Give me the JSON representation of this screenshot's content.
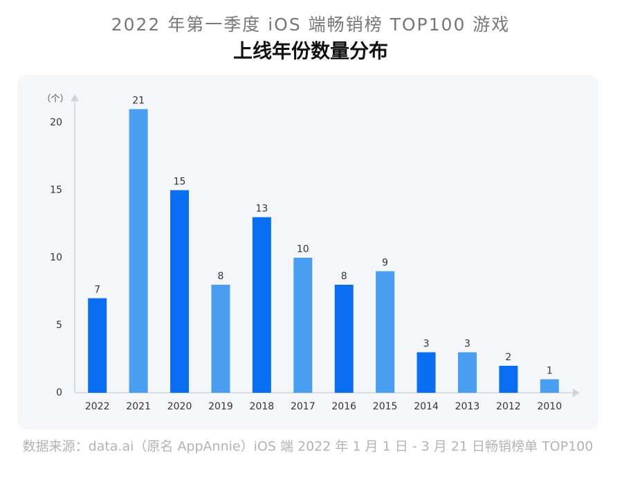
{
  "chart_data": {
    "type": "bar",
    "title": "2022 年第一季度 iOS 端畅销榜 TOP100 游戏",
    "subtitle": "上线年份数量分布",
    "y_label": "（个）",
    "source": "数据来源：data.ai（原名 AppAnnie）iOS 端 2022 年 1 月 1 日 - 3 月 21 日畅销榜单 TOP100",
    "categories": [
      "2022",
      "2021",
      "2020",
      "2019",
      "2018",
      "2017",
      "2016",
      "2015",
      "2014",
      "2013",
      "2012",
      "2010"
    ],
    "values": [
      7,
      21,
      15,
      8,
      13,
      10,
      8,
      9,
      3,
      3,
      2,
      1
    ],
    "colors": [
      "#0a6ef2",
      "#4a9ef2",
      "#0a6ef2",
      "#4a9ef2",
      "#0a6ef2",
      "#4a9ef2",
      "#0a6ef2",
      "#4a9ef2",
      "#0a6ef2",
      "#4a9ef2",
      "#0a6ef2",
      "#4a9ef2"
    ],
    "ylim": [
      0,
      22
    ],
    "yticks": [
      0,
      5,
      10,
      15,
      20
    ],
    "grid": false
  }
}
